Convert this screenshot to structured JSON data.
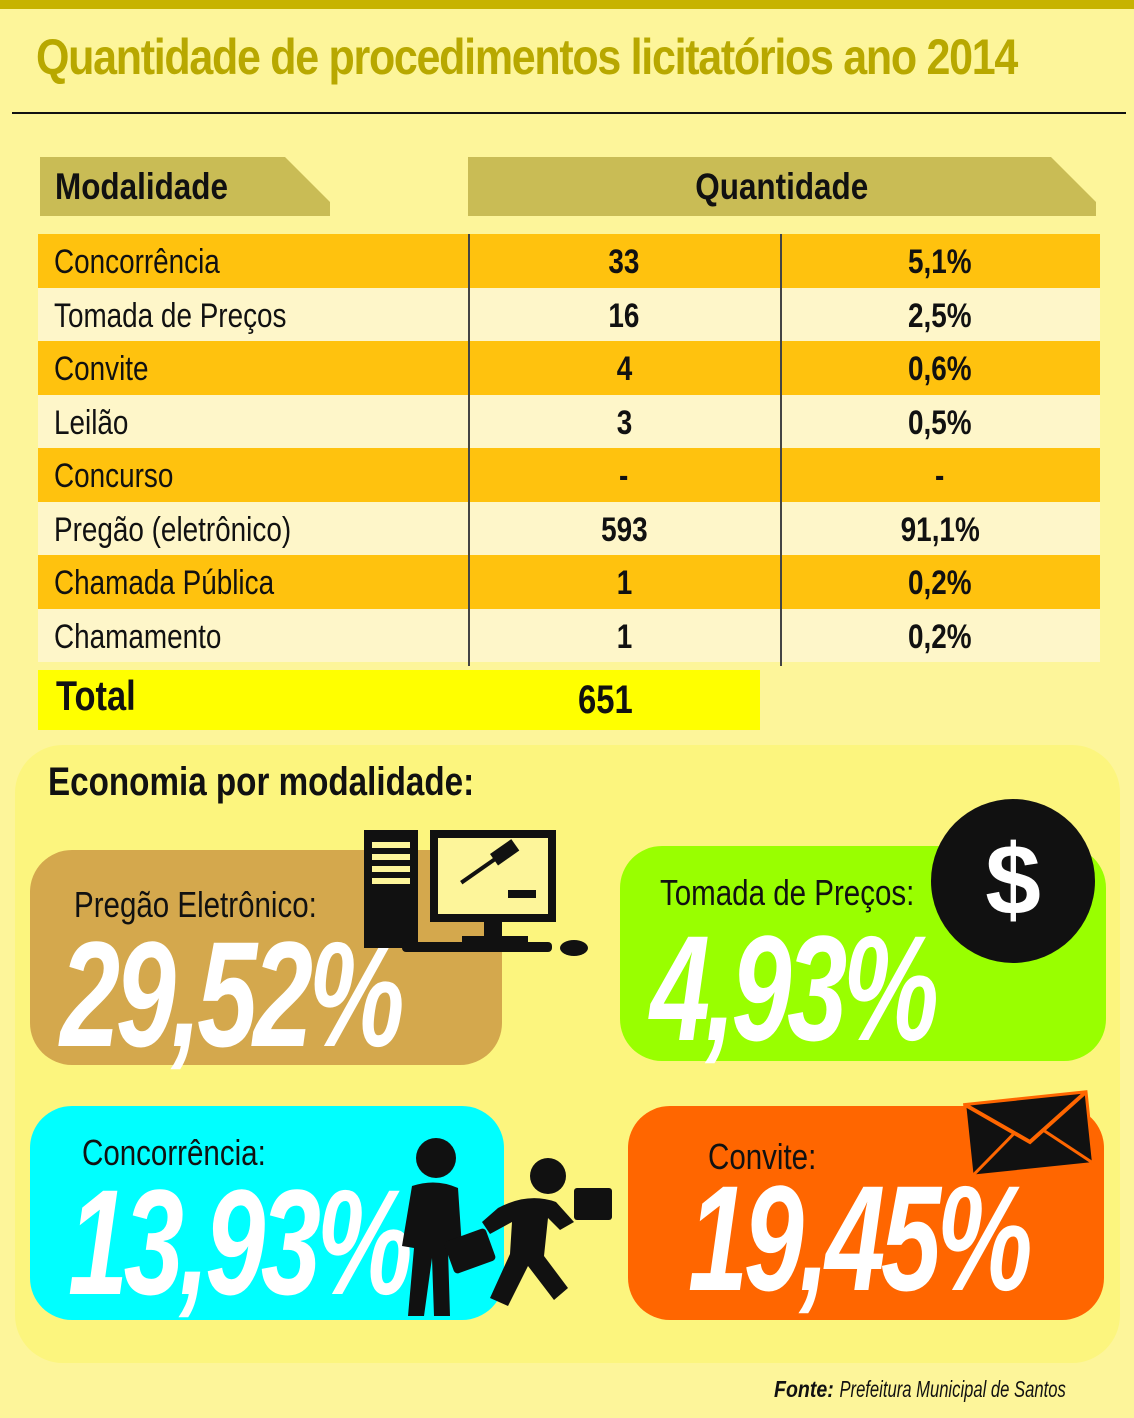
{
  "title": "Quantidade de procedimentos licitatórios ano 2014",
  "table": {
    "header_modalidade": "Modalidade",
    "header_quantidade": "Quantidade",
    "rows": [
      {
        "name": "Concorrência",
        "qty": "33",
        "pct": "5,1%"
      },
      {
        "name": "Tomada de Preços",
        "qty": "16",
        "pct": "2,5%"
      },
      {
        "name": "Convite",
        "qty": "4",
        "pct": "0,6%"
      },
      {
        "name": "Leilão",
        "qty": "3",
        "pct": "0,5%"
      },
      {
        "name": "Concurso",
        "qty": "-",
        "pct": "-"
      },
      {
        "name": "Pregão (eletrônico)",
        "qty": "593",
        "pct": "91,1%"
      },
      {
        "name": "Chamada Pública",
        "qty": "1",
        "pct": "0,2%"
      },
      {
        "name": "Chamamento",
        "qty": "1",
        "pct": "0,2%"
      }
    ],
    "total_label": "Total",
    "total_value": "651"
  },
  "economy": {
    "title": "Economia por modalidade:",
    "cards": [
      {
        "label": "Pregão Eletrônico:",
        "value": "29,52%",
        "color": "#d4a84d",
        "icon": "computer-auction-icon"
      },
      {
        "label": "Tomada de Preços:",
        "value": "4,93%",
        "color": "#99ff00",
        "icon": "dollar-icon"
      },
      {
        "label": "Concorrência:",
        "value": "13,93%",
        "color": "#00ffff",
        "icon": "businessmen-race-icon"
      },
      {
        "label": "Convite:",
        "value": "19,45%",
        "color": "#ff6600",
        "icon": "envelope-icon"
      }
    ]
  },
  "source": {
    "label": "Fonte:",
    "text": "Prefeitura Municipal de Santos"
  },
  "colors": {
    "title": "#b8a800",
    "header": "#c9bc55",
    "row_odd": "#ffc20e",
    "row_even": "#fef6c9",
    "total": "#ffff00",
    "background": "#fdf59a"
  }
}
